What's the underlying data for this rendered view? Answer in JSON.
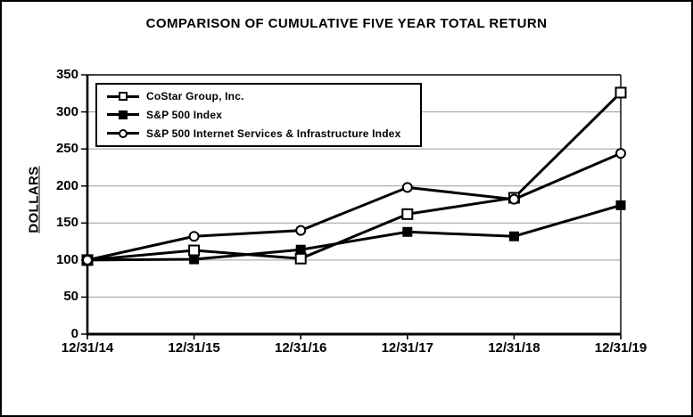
{
  "colors": {
    "series_line": "#000000",
    "gridline": "#999999",
    "axis": "#000000",
    "background": "#ffffff",
    "marker_fill": "#ffffff"
  },
  "chart_data": {
    "type": "line",
    "title": "COMPARISON OF CUMULATIVE FIVE YEAR TOTAL RETURN",
    "xlabel": "",
    "ylabel": "DOLLARS",
    "ylim": [
      0,
      350
    ],
    "y_ticks": [
      0,
      50,
      100,
      150,
      200,
      250,
      300,
      350
    ],
    "grid": "horizontal",
    "legend_position": "top-left-inside",
    "categories": [
      "12/31/14",
      "12/31/15",
      "12/31/16",
      "12/31/17",
      "12/31/18",
      "12/31/19"
    ],
    "series": [
      {
        "name": "CoStar Group, Inc.",
        "marker": "open-square",
        "values": [
          100,
          113,
          102,
          162,
          184,
          326
        ]
      },
      {
        "name": "S&P 500 Index",
        "marker": "filled-square",
        "values": [
          100,
          101,
          114,
          138,
          132,
          174
        ]
      },
      {
        "name": "S&P 500 Internet Services & Infrastructure Index",
        "marker": "open-circle",
        "values": [
          100,
          132,
          140,
          198,
          182,
          244
        ]
      }
    ]
  }
}
